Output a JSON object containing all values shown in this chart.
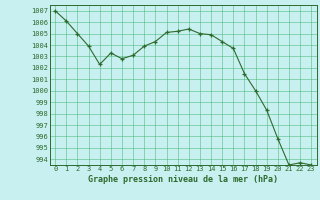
{
  "x": [
    0,
    1,
    2,
    3,
    4,
    5,
    6,
    7,
    8,
    9,
    10,
    11,
    12,
    13,
    14,
    15,
    16,
    17,
    18,
    19,
    20,
    21,
    22,
    23
  ],
  "y": [
    1007.0,
    1006.1,
    1005.0,
    1003.9,
    1002.3,
    1003.3,
    1002.8,
    1003.1,
    1003.9,
    1004.3,
    1005.1,
    1005.2,
    1005.4,
    1005.0,
    1004.9,
    1004.3,
    1003.7,
    1001.5,
    1000.0,
    998.3,
    995.8,
    993.5,
    993.7,
    993.5
  ],
  "ylim": [
    993.5,
    1007.5
  ],
  "yticks": [
    994,
    995,
    996,
    997,
    998,
    999,
    1000,
    1001,
    1002,
    1003,
    1004,
    1005,
    1006,
    1007
  ],
  "xlabel": "Graphe pression niveau de la mer (hPa)",
  "line_color": "#2d6a2d",
  "bg_color": "#c8f0f0",
  "grid_color": "#3cb371",
  "marker": "+"
}
